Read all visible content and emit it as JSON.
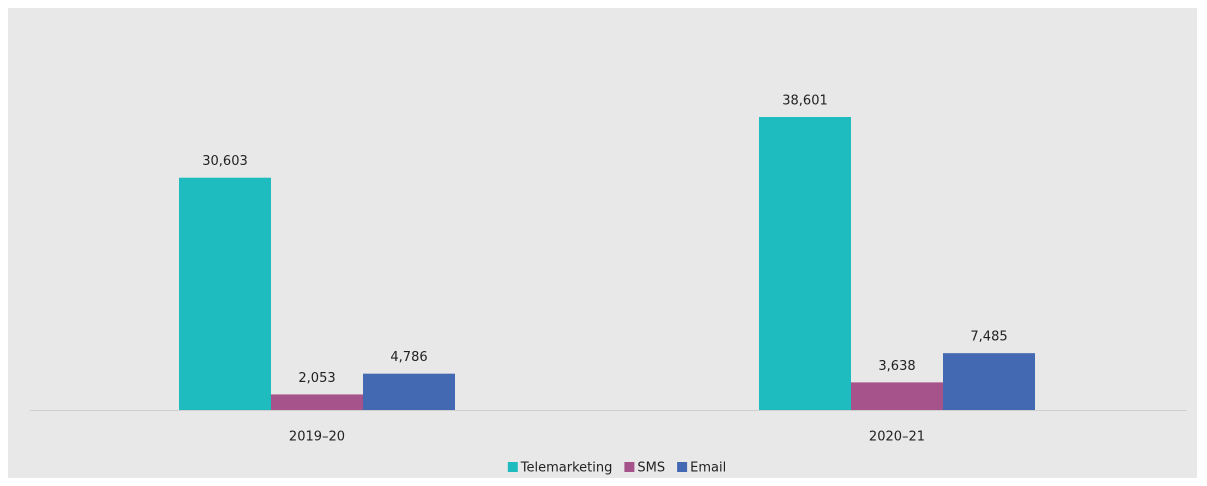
{
  "chart_data": {
    "type": "bar",
    "categories": [
      "2019–20",
      "2020–21"
    ],
    "series": [
      {
        "name": "Telemarketing",
        "color": "#1fbcbf",
        "values": [
          30603,
          38601
        ],
        "value_labels": [
          "30,603",
          "38,601"
        ]
      },
      {
        "name": "SMS",
        "color": "#a5538a",
        "values": [
          2053,
          3638
        ],
        "value_labels": [
          "2,053",
          "3,638"
        ]
      },
      {
        "name": "Email",
        "color": "#4269b2",
        "values": [
          4786,
          7485
        ],
        "value_labels": [
          "4,786",
          "7,485"
        ]
      }
    ],
    "legend": "bottom"
  }
}
